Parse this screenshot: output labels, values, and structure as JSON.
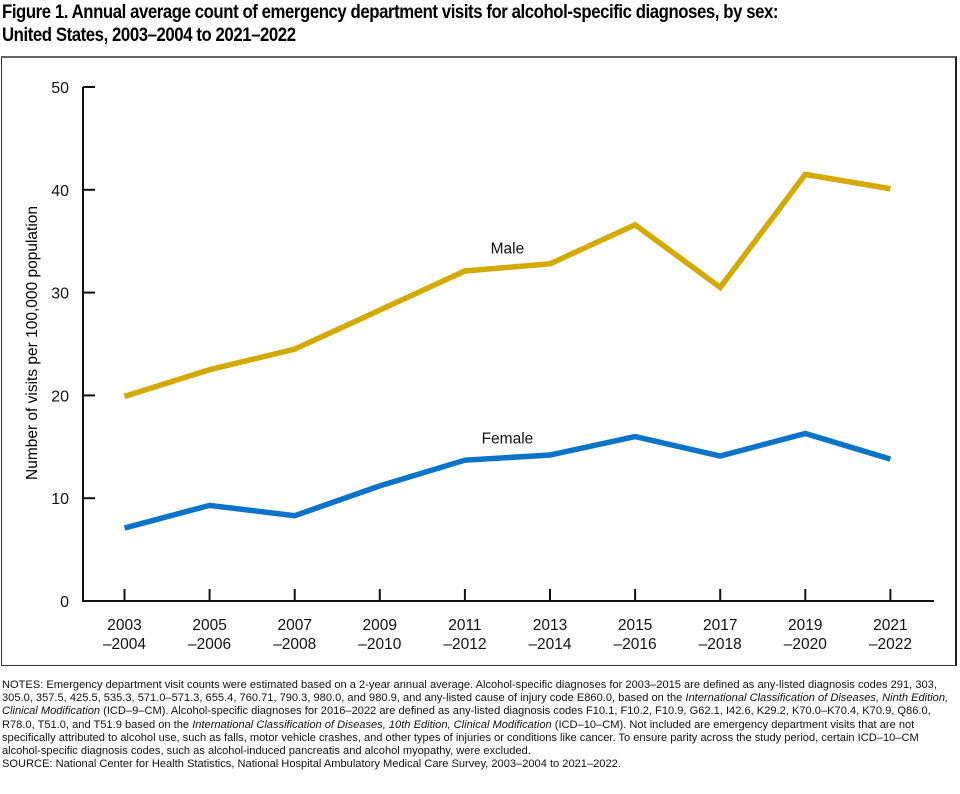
{
  "title_line1": "Figure 1. Annual average count of emergency department visits for alcohol-specific diagnoses, by sex:",
  "title_line2": "United States, 2003–2004 to 2021–2022",
  "chart_data": {
    "type": "line",
    "title": "Annual average count of emergency department visits for alcohol-specific diagnoses, by sex: United States, 2003–2004 to 2021–2022",
    "xlabel": "",
    "ylabel": "Number of visits per 100,000 population",
    "ylim": [
      0,
      50
    ],
    "yticks": [
      0,
      10,
      20,
      30,
      40,
      50
    ],
    "grid": false,
    "legend": "inline-labels",
    "categories": [
      {
        "top": "2003",
        "bottom": "–2004"
      },
      {
        "top": "2005",
        "bottom": "–2006"
      },
      {
        "top": "2007",
        "bottom": "–2008"
      },
      {
        "top": "2009",
        "bottom": "–2010"
      },
      {
        "top": "2011",
        "bottom": "–2012"
      },
      {
        "top": "2013",
        "bottom": "–2014"
      },
      {
        "top": "2015",
        "bottom": "–2016"
      },
      {
        "top": "2017",
        "bottom": "–2018"
      },
      {
        "top": "2019",
        "bottom": "–2020"
      },
      {
        "top": "2021",
        "bottom": "–2022"
      }
    ],
    "series": [
      {
        "name": "Male",
        "color": "#D4A900",
        "values": [
          19.9,
          22.5,
          24.5,
          28.3,
          32.1,
          32.8,
          36.6,
          30.5,
          41.5,
          40.1
        ],
        "label_at": 4.5
      },
      {
        "name": "Female",
        "color": "#0B74C8",
        "values": [
          7.1,
          9.3,
          8.3,
          11.2,
          13.7,
          14.2,
          16.0,
          14.1,
          16.3,
          13.8
        ],
        "label_at": 4.5
      }
    ]
  },
  "notes": {
    "label": "NOTES:",
    "text_1": " Emergency department visit counts were estimated based on a 2-year annual average. Alcohol-specific diagnoses for 2003–2015 are defined as any-listed diagnosis codes 291, 303, 305.0, 357.5, 425.5, 535.3, 571.0–571.3, 655.4, 760.71, 790.3, 980.0, and 980.9, and any-listed cause of injury code E860.0, based on the ",
    "italic_1": "International Classification of Diseases, Ninth Edition, Clinical Modification",
    "text_2": " (ICD–9–CM). Alcohol-specific diagnoses for 2016–2022 are defined as any-listed diagnosis codes F10.1, F10.2, F10.9, G62.1, I42.6, K29.2, K70.0–K70.4, K70.9, Q86.0, R78.0, T51.0, and T51.9 based on the ",
    "italic_2": "International Classification of Diseases, 10th Edition, Clinical Modification",
    "text_3": " (ICD–10–CM). Not included are emergency department visits that are not specifically attributed to alcohol use, such as falls, motor vehicle crashes, and other types of injuries or conditions like cancer. To ensure parity across the study period, certain ICD–10–CM alcohol-specific diagnosis codes, such as alcohol-induced pancreatis and alcohol myopathy, were excluded."
  },
  "source": "SOURCE: National Center for Health Statistics, National Hospital Ambulatory Medical Care Survey, 2003–2004 to 2021–2022."
}
